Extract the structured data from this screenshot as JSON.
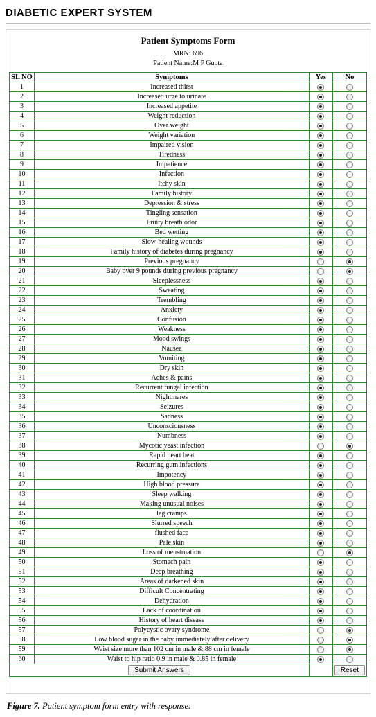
{
  "app_title": "DIABETIC EXPERT SYSTEM",
  "form_title": "Patient Symptoms Form",
  "mrn_label": "MRN:",
  "mrn_value": "696",
  "patient_name_label": "Patient Name:",
  "patient_name_value": "M P   Gupta",
  "headers": {
    "sl": "SL NO",
    "symptom": "Symptoms",
    "yes": "Yes",
    "no": "No"
  },
  "buttons": {
    "submit": "Submit Answers",
    "reset": "Reset"
  },
  "caption_lead": "Figure 7.",
  "caption_text": " Patient symptom form entry with response.",
  "colors": {
    "table_border": "#2e8b2e",
    "outer_border": "#cfd4cf",
    "rule": "#bcbcbc"
  },
  "rows": [
    {
      "n": 1,
      "s": "Increased thirst",
      "sel": "yes"
    },
    {
      "n": 2,
      "s": "Increased urge to urinate",
      "sel": "yes"
    },
    {
      "n": 3,
      "s": "Increased appetite",
      "sel": "yes"
    },
    {
      "n": 4,
      "s": "Weight reduction",
      "sel": "yes"
    },
    {
      "n": 5,
      "s": "Over weight",
      "sel": "yes"
    },
    {
      "n": 6,
      "s": "Weight variation",
      "sel": "yes"
    },
    {
      "n": 7,
      "s": "Impaired vision",
      "sel": "yes"
    },
    {
      "n": 8,
      "s": "Tiredness",
      "sel": "yes"
    },
    {
      "n": 9,
      "s": "Impatience",
      "sel": "yes"
    },
    {
      "n": 10,
      "s": "Infection",
      "sel": "yes"
    },
    {
      "n": 11,
      "s": "Itchy skin",
      "sel": "yes"
    },
    {
      "n": 12,
      "s": "Family history",
      "sel": "yes"
    },
    {
      "n": 13,
      "s": "Depression & stress",
      "sel": "yes"
    },
    {
      "n": 14,
      "s": "Tingling sensation",
      "sel": "yes"
    },
    {
      "n": 15,
      "s": "Fruity breath odor",
      "sel": "yes"
    },
    {
      "n": 16,
      "s": "Bed wetting",
      "sel": "yes"
    },
    {
      "n": 17,
      "s": "Slow-healing wounds",
      "sel": "yes"
    },
    {
      "n": 18,
      "s": "Family history of diabetes during pregnancy",
      "sel": "yes"
    },
    {
      "n": 19,
      "s": "Previous pregnancy",
      "sel": "no"
    },
    {
      "n": 20,
      "s": "Baby over 9 pounds during previous pregnancy",
      "sel": "no"
    },
    {
      "n": 21,
      "s": "Sleeplessness",
      "sel": "yes"
    },
    {
      "n": 22,
      "s": "Sweating",
      "sel": "yes"
    },
    {
      "n": 23,
      "s": "Trembling",
      "sel": "yes"
    },
    {
      "n": 24,
      "s": "Anxiety",
      "sel": "yes"
    },
    {
      "n": 25,
      "s": "Confusion",
      "sel": "yes"
    },
    {
      "n": 26,
      "s": "Weakness",
      "sel": "yes"
    },
    {
      "n": 27,
      "s": "Mood swings",
      "sel": "yes"
    },
    {
      "n": 28,
      "s": "Nausea",
      "sel": "yes"
    },
    {
      "n": 29,
      "s": "Vomiting",
      "sel": "yes"
    },
    {
      "n": 30,
      "s": "Dry skin",
      "sel": "yes"
    },
    {
      "n": 31,
      "s": "Aches & pains",
      "sel": "yes"
    },
    {
      "n": 32,
      "s": "Recurrent fungal infection",
      "sel": "yes"
    },
    {
      "n": 33,
      "s": "Nightmares",
      "sel": "yes"
    },
    {
      "n": 34,
      "s": "Seizures",
      "sel": "yes"
    },
    {
      "n": 35,
      "s": "Sadness",
      "sel": "yes"
    },
    {
      "n": 36,
      "s": "Unconsciousness",
      "sel": "yes"
    },
    {
      "n": 37,
      "s": "Numbness",
      "sel": "yes"
    },
    {
      "n": 38,
      "s": "Mycotic yeast infection",
      "sel": "no"
    },
    {
      "n": 39,
      "s": "Rapid heart beat",
      "sel": "yes"
    },
    {
      "n": 40,
      "s": "Recurring gum infections",
      "sel": "yes"
    },
    {
      "n": 41,
      "s": "Impotency",
      "sel": "yes"
    },
    {
      "n": 42,
      "s": "High blood pressure",
      "sel": "yes"
    },
    {
      "n": 43,
      "s": "Sleep walking",
      "sel": "yes"
    },
    {
      "n": 44,
      "s": "Making unusual noises",
      "sel": "yes"
    },
    {
      "n": 45,
      "s": "leg cramps",
      "sel": "yes"
    },
    {
      "n": 46,
      "s": "Slurred speech",
      "sel": "yes"
    },
    {
      "n": 47,
      "s": "flushed face",
      "sel": "yes"
    },
    {
      "n": 48,
      "s": "Pale skin",
      "sel": "yes"
    },
    {
      "n": 49,
      "s": "Loss of menstruation",
      "sel": "no"
    },
    {
      "n": 50,
      "s": "Stomach pain",
      "sel": "yes"
    },
    {
      "n": 51,
      "s": "Deep breathing",
      "sel": "yes"
    },
    {
      "n": 52,
      "s": "Areas of darkened skin",
      "sel": "yes"
    },
    {
      "n": 53,
      "s": "Difficult Concentrating",
      "sel": "yes"
    },
    {
      "n": 54,
      "s": "Dehydration",
      "sel": "yes"
    },
    {
      "n": 55,
      "s": "Lack of coordination",
      "sel": "yes"
    },
    {
      "n": 56,
      "s": "History of heart disease",
      "sel": "yes"
    },
    {
      "n": 57,
      "s": "Polycystic ovary syndrome",
      "sel": "no"
    },
    {
      "n": 58,
      "s": "Low blood sugar in the baby immediately after delivery",
      "sel": "no"
    },
    {
      "n": 59,
      "s": "Waist size more than 102 cm in male & 88 cm in female",
      "sel": "no"
    },
    {
      "n": 60,
      "s": "Waist to hip ratio 0.9 in male & 0.85 in female",
      "sel": "yes"
    }
  ]
}
